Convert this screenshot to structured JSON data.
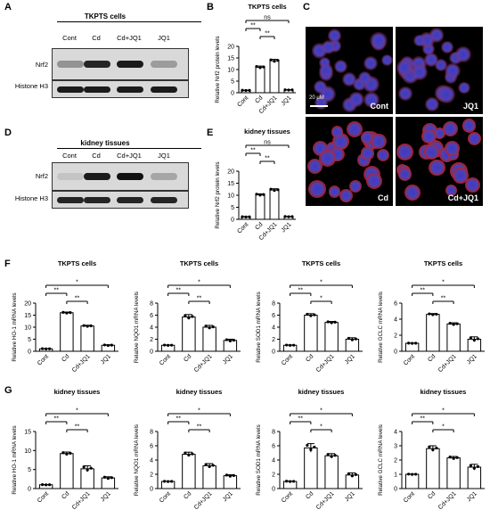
{
  "panels": {
    "A": "A",
    "B": "B",
    "C": "C",
    "D": "D",
    "E": "E",
    "F": "F",
    "G": "G"
  },
  "blot_A": {
    "title": "TKPTS cells",
    "lanes": [
      "Cont",
      "Cd",
      "Cd+JQ1",
      "JQ1"
    ],
    "rows": [
      "Nrf2",
      "Histone H3"
    ],
    "nrf2_intensity": [
      0.35,
      0.9,
      0.95,
      0.3
    ]
  },
  "blot_D": {
    "title": "kidney tissues",
    "lanes": [
      "Cont",
      "Cd",
      "Cd+JQ1",
      "JQ1"
    ],
    "rows": [
      "Nrf2",
      "Histone H3"
    ],
    "nrf2_intensity": [
      0.1,
      0.95,
      1.0,
      0.25
    ]
  },
  "micro": {
    "scale": "20 μM",
    "labels": [
      "Cont",
      "JQ1",
      "Cd",
      "Cd+JQ1"
    ],
    "colors": {
      "nucleus": "#3a3ac8",
      "nrf2": "#c02020"
    }
  },
  "sig": {
    "star2": "**",
    "star1": "*",
    "ns": "ns"
  },
  "chart_data": [
    {
      "id": "B",
      "type": "bar",
      "title": "TKPTS cells",
      "ylabel": "Relative Nrf2 protein levels",
      "categories": [
        "Cont",
        "Cd",
        "Cd+JQ1",
        "JQ1"
      ],
      "values": [
        1,
        11,
        13.8,
        1.2
      ],
      "errors": [
        0.1,
        0.5,
        0.6,
        0.1
      ],
      "ylim": [
        0,
        20
      ],
      "yticks": [
        0,
        5,
        10,
        15,
        20
      ],
      "brackets": [
        {
          "from": 0,
          "to": 1,
          "label": "**",
          "level": 3
        },
        {
          "from": 1,
          "to": 2,
          "label": "**",
          "level": 2
        },
        {
          "from": 0,
          "to": 3,
          "label": "ns",
          "level": 4
        }
      ]
    },
    {
      "id": "E",
      "type": "bar",
      "title": "kidney tissues",
      "ylabel": "Relative Nrf2 protein levels",
      "categories": [
        "Cont",
        "Cd",
        "Cd+JQ1",
        "JQ1"
      ],
      "values": [
        1,
        10.2,
        12.2,
        1.1
      ],
      "errors": [
        0.1,
        0.4,
        0.5,
        0.1
      ],
      "ylim": [
        0,
        20
      ],
      "yticks": [
        0,
        5,
        10,
        15,
        20
      ],
      "brackets": [
        {
          "from": 0,
          "to": 1,
          "label": "**",
          "level": 3
        },
        {
          "from": 1,
          "to": 2,
          "label": "**",
          "level": 2
        },
        {
          "from": 0,
          "to": 3,
          "label": "ns",
          "level": 4
        }
      ]
    },
    {
      "id": "F1",
      "type": "bar",
      "title": "TKPTS cells",
      "ylabel": "Relative HO-1 mRNA levels",
      "categories": [
        "Cont",
        "Cd",
        "Cd+JQ1",
        "JQ1"
      ],
      "values": [
        1,
        16,
        10.5,
        2.5
      ],
      "errors": [
        0.1,
        0.3,
        0.3,
        0.2
      ],
      "ylim": [
        0,
        20
      ],
      "yticks": [
        0,
        5,
        10,
        15,
        20
      ],
      "brackets": [
        {
          "from": 0,
          "to": 1,
          "label": "**",
          "level": 2
        },
        {
          "from": 1,
          "to": 2,
          "label": "**",
          "level": 1
        },
        {
          "from": 0,
          "to": 3,
          "label": "*",
          "level": 3
        }
      ]
    },
    {
      "id": "F2",
      "type": "bar",
      "title": "TKPTS cells",
      "ylabel": "Relative NQO1 mRNA levels",
      "categories": [
        "Cont",
        "Cd",
        "Cd+JQ1",
        "JQ1"
      ],
      "values": [
        1,
        5.7,
        4,
        1.8
      ],
      "errors": [
        0.05,
        0.4,
        0.3,
        0.2
      ],
      "ylim": [
        0,
        8
      ],
      "yticks": [
        0,
        2,
        4,
        6,
        8
      ],
      "brackets": [
        {
          "from": 0,
          "to": 1,
          "label": "**",
          "level": 2
        },
        {
          "from": 1,
          "to": 2,
          "label": "**",
          "level": 1
        },
        {
          "from": 0,
          "to": 3,
          "label": "*",
          "level": 3
        }
      ]
    },
    {
      "id": "F3",
      "type": "bar",
      "title": "TKPTS cells",
      "ylabel": "Relative SOD1 mRNA levels",
      "categories": [
        "Cont",
        "Cd",
        "Cd+JQ1",
        "JQ1"
      ],
      "values": [
        1,
        6,
        4.8,
        2
      ],
      "errors": [
        0.05,
        0.25,
        0.15,
        0.25
      ],
      "ylim": [
        0,
        8
      ],
      "yticks": [
        0,
        2,
        4,
        6,
        8
      ],
      "brackets": [
        {
          "from": 0,
          "to": 1,
          "label": "**",
          "level": 2
        },
        {
          "from": 1,
          "to": 2,
          "label": "*",
          "level": 1
        },
        {
          "from": 0,
          "to": 3,
          "label": "*",
          "level": 3
        }
      ]
    },
    {
      "id": "F4",
      "type": "bar",
      "title": "TKPTS cells",
      "ylabel": "Relative GCLC mRNA levels",
      "categories": [
        "Cont",
        "Cd",
        "Cd+JQ1",
        "JQ1"
      ],
      "values": [
        1,
        4.6,
        3.4,
        1.5
      ],
      "errors": [
        0.03,
        0.1,
        0.15,
        0.3
      ],
      "ylim": [
        0,
        6
      ],
      "yticks": [
        0,
        2,
        4,
        6
      ],
      "brackets": [
        {
          "from": 0,
          "to": 1,
          "label": "**",
          "level": 2
        },
        {
          "from": 1,
          "to": 2,
          "label": "**",
          "level": 1
        },
        {
          "from": 0,
          "to": 3,
          "label": "*",
          "level": 3
        }
      ]
    },
    {
      "id": "G1",
      "type": "bar",
      "title": "kidney tissues",
      "ylabel": "Relative HO-1 mRNA levels",
      "categories": [
        "Cont",
        "Cd",
        "Cd+JQ1",
        "JQ1"
      ],
      "values": [
        1,
        9.2,
        5.2,
        2.8
      ],
      "errors": [
        0.05,
        0.4,
        0.8,
        0.3
      ],
      "ylim": [
        0,
        15
      ],
      "yticks": [
        0,
        5,
        10,
        15
      ],
      "brackets": [
        {
          "from": 0,
          "to": 1,
          "label": "**",
          "level": 2
        },
        {
          "from": 1,
          "to": 2,
          "label": "**",
          "level": 1
        },
        {
          "from": 0,
          "to": 3,
          "label": "*",
          "level": 3
        }
      ]
    },
    {
      "id": "G2",
      "type": "bar",
      "title": "kidney tissues",
      "ylabel": "Relative NQO1 mRNA levels",
      "categories": [
        "Cont",
        "Cd",
        "Cd+JQ1",
        "JQ1"
      ],
      "values": [
        1,
        4.8,
        3.2,
        1.8
      ],
      "errors": [
        0.03,
        0.3,
        0.3,
        0.15
      ],
      "ylim": [
        0,
        8
      ],
      "yticks": [
        0,
        2,
        4,
        6,
        8
      ],
      "brackets": [
        {
          "from": 0,
          "to": 1,
          "label": "**",
          "level": 2
        },
        {
          "from": 1,
          "to": 2,
          "label": "**",
          "level": 1
        },
        {
          "from": 0,
          "to": 3,
          "label": "*",
          "level": 3
        }
      ]
    },
    {
      "id": "G3",
      "type": "bar",
      "title": "kidney tissues",
      "ylabel": "Relative SOD1 mRNA levels",
      "categories": [
        "Cont",
        "Cd",
        "Cd+JQ1",
        "JQ1"
      ],
      "values": [
        1,
        5.7,
        4.6,
        1.9
      ],
      "errors": [
        0.05,
        0.6,
        0.3,
        0.3
      ],
      "ylim": [
        0,
        8
      ],
      "yticks": [
        0,
        2,
        4,
        6,
        8
      ],
      "brackets": [
        {
          "from": 0,
          "to": 1,
          "label": "**",
          "level": 2
        },
        {
          "from": 1,
          "to": 2,
          "label": "*",
          "level": 1
        },
        {
          "from": 0,
          "to": 3,
          "label": "*",
          "level": 3
        }
      ]
    },
    {
      "id": "G4",
      "type": "bar",
      "title": "kidney tissues",
      "ylabel": "Relative GCLC mRNA levels",
      "categories": [
        "Cont",
        "Cd",
        "Cd+JQ1",
        "JQ1"
      ],
      "values": [
        1,
        2.8,
        2.15,
        1.5
      ],
      "errors": [
        0.02,
        0.2,
        0.1,
        0.2
      ],
      "ylim": [
        0,
        4
      ],
      "yticks": [
        0,
        1,
        2,
        3,
        4
      ],
      "brackets": [
        {
          "from": 0,
          "to": 1,
          "label": "**",
          "level": 2
        },
        {
          "from": 1,
          "to": 2,
          "label": "*",
          "level": 1
        },
        {
          "from": 0,
          "to": 3,
          "label": "*",
          "level": 3
        }
      ]
    }
  ]
}
